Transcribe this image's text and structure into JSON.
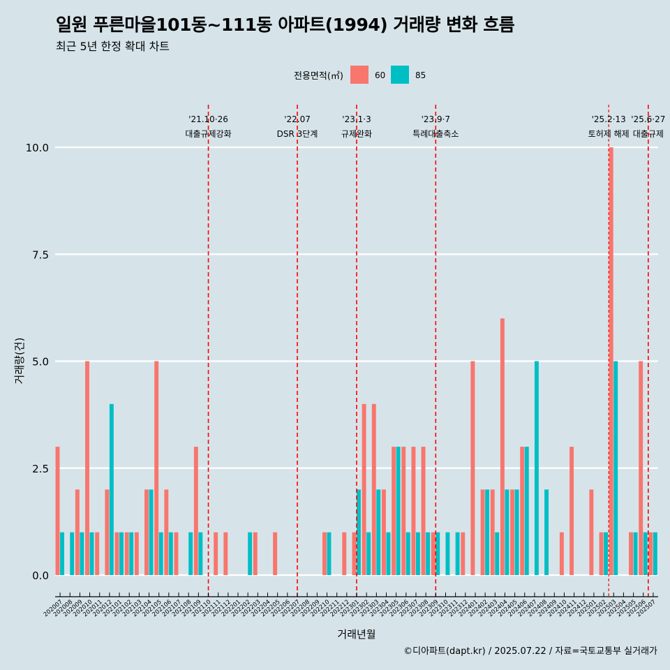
{
  "chart_data": {
    "type": "bar",
    "title": "일원 푸른마을101동~111동 아파트(1994) 거래량 변화 흐름",
    "subtitle": "최근 5년 한정 확대 차트",
    "xlabel": "거래년월",
    "ylabel": "거래량(건)",
    "ylim": [
      0,
      10
    ],
    "yticks": [
      0,
      2.5,
      5,
      7.5,
      10
    ],
    "ytick_labels": [
      "0.0",
      "2.5",
      "5.0",
      "7.5",
      "10.0"
    ],
    "grid": true,
    "legend": {
      "title": "전용면적(㎡)",
      "position": "top",
      "entries": [
        "60",
        "85"
      ]
    },
    "colors": {
      "60": "#f8766d",
      "85": "#00bfc4",
      "event_line": "#ff0000",
      "grid": "#ffffff"
    },
    "categories": [
      "202007",
      "202008",
      "202009",
      "202010",
      "202011",
      "202012",
      "202101",
      "202102",
      "202103",
      "202104",
      "202105",
      "202106",
      "202107",
      "202108",
      "202109",
      "202110",
      "202111",
      "202112",
      "202201",
      "202202",
      "202203",
      "202204",
      "202205",
      "202206",
      "202207",
      "202208",
      "202209",
      "202210",
      "202211",
      "202212",
      "202301",
      "202302",
      "202303",
      "202304",
      "202305",
      "202306",
      "202307",
      "202308",
      "202309",
      "202310",
      "202311",
      "202312",
      "202401",
      "202402",
      "202403",
      "202404",
      "202405",
      "202406",
      "202407",
      "202408",
      "202409",
      "202410",
      "202411",
      "202412",
      "202501",
      "202502",
      "202503",
      "202504",
      "202505",
      "202506",
      "202507"
    ],
    "series": [
      {
        "name": "60",
        "values": [
          3,
          0,
          2,
          5,
          1,
          2,
          1,
          1,
          1,
          2,
          5,
          2,
          1,
          0,
          3,
          0,
          1,
          1,
          0,
          0,
          1,
          0,
          1,
          0,
          0,
          0,
          0,
          1,
          0,
          1,
          1,
          4,
          4,
          2,
          3,
          3,
          3,
          3,
          1,
          0,
          0,
          1,
          5,
          2,
          2,
          6,
          2,
          3,
          0,
          0,
          0,
          1,
          3,
          0,
          2,
          1,
          10,
          0,
          1,
          5,
          1
        ]
      },
      {
        "name": "85",
        "values": [
          1,
          1,
          1,
          1,
          0,
          4,
          1,
          1,
          0,
          2,
          1,
          1,
          0,
          1,
          1,
          0,
          0,
          0,
          0,
          1,
          0,
          0,
          0,
          0,
          0,
          0,
          0,
          1,
          0,
          0,
          2,
          1,
          2,
          1,
          3,
          1,
          1,
          1,
          1,
          1,
          1,
          0,
          0,
          2,
          1,
          2,
          2,
          3,
          5,
          2,
          0,
          0,
          0,
          0,
          0,
          1,
          5,
          0,
          1,
          1,
          1
        ]
      }
    ],
    "events": [
      {
        "date_line1": "'21.10·26",
        "date_line2": "대출규제강화",
        "index": 15,
        "style": "dashed"
      },
      {
        "date_line1": "'22.07",
        "date_line2": "DSR 3단계",
        "index": 24,
        "style": "dashed"
      },
      {
        "date_line1": "'23.1·3",
        "date_line2": "규제완화",
        "index": 30,
        "style": "dashed"
      },
      {
        "date_line1": "'23.9·7",
        "date_line2": "특례대출축소",
        "index": 38,
        "style": "dashed"
      },
      {
        "date_line1": "'25.2·13",
        "date_line2": "토허제 해제",
        "index": 55.5,
        "style": "dotted"
      },
      {
        "date_line1": "'25.6·27",
        "date_line2": "대출규제",
        "index": 59.5,
        "style": "dashed"
      }
    ]
  },
  "credit": "©디아파트(dapt.kr) / 2025.07.22 / 자료=국토교통부 실거래가"
}
